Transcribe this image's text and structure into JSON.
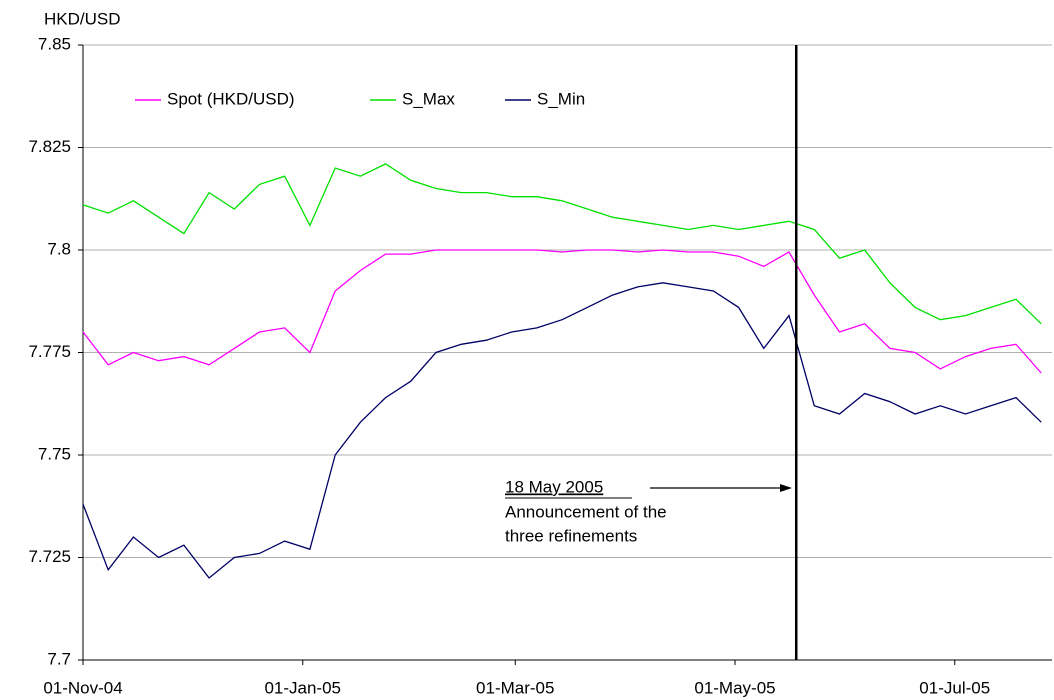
{
  "chart_data": {
    "type": "line",
    "y_label": "HKD/USD",
    "x": [
      "2004-11-01",
      "2004-11-08",
      "2004-11-15",
      "2004-11-22",
      "2004-11-29",
      "2004-12-06",
      "2004-12-13",
      "2004-12-20",
      "2004-12-27",
      "2005-01-03",
      "2005-01-10",
      "2005-01-17",
      "2005-01-24",
      "2005-01-31",
      "2005-02-07",
      "2005-02-14",
      "2005-02-21",
      "2005-02-28",
      "2005-03-07",
      "2005-03-14",
      "2005-03-21",
      "2005-03-28",
      "2005-04-04",
      "2005-04-11",
      "2005-04-18",
      "2005-04-25",
      "2005-05-02",
      "2005-05-09",
      "2005-05-16",
      "2005-05-23",
      "2005-05-30",
      "2005-06-06",
      "2005-06-13",
      "2005-06-20",
      "2005-06-27",
      "2005-07-04",
      "2005-07-11",
      "2005-07-18",
      "2005-07-25"
    ],
    "series": [
      {
        "name": "Spot (HKD/USD)",
        "color": "#ff00ff",
        "values": [
          7.78,
          7.772,
          7.775,
          7.773,
          7.774,
          7.772,
          7.776,
          7.78,
          7.781,
          7.775,
          7.79,
          7.795,
          7.799,
          7.799,
          7.8,
          7.8,
          7.8,
          7.8,
          7.8,
          7.7995,
          7.8,
          7.8,
          7.7995,
          7.8,
          7.7995,
          7.7995,
          7.7985,
          7.796,
          7.7995,
          7.789,
          7.78,
          7.782,
          7.776,
          7.775,
          7.771,
          7.774,
          7.776,
          7.777,
          7.77
        ]
      },
      {
        "name": "S_Max",
        "color": "#00e000",
        "values": [
          7.811,
          7.809,
          7.812,
          7.808,
          7.804,
          7.814,
          7.81,
          7.816,
          7.818,
          7.806,
          7.82,
          7.818,
          7.821,
          7.817,
          7.815,
          7.814,
          7.814,
          7.813,
          7.813,
          7.812,
          7.81,
          7.808,
          7.807,
          7.806,
          7.805,
          7.806,
          7.805,
          7.806,
          7.807,
          7.805,
          7.798,
          7.8,
          7.792,
          7.786,
          7.783,
          7.784,
          7.786,
          7.788,
          7.782
        ]
      },
      {
        "name": "S_Min",
        "color": "#000066",
        "values": [
          7.738,
          7.722,
          7.73,
          7.725,
          7.728,
          7.72,
          7.725,
          7.726,
          7.729,
          7.727,
          7.75,
          7.758,
          7.764,
          7.768,
          7.775,
          7.777,
          7.778,
          7.78,
          7.781,
          7.783,
          7.786,
          7.789,
          7.791,
          7.792,
          7.791,
          7.79,
          7.786,
          7.776,
          7.784,
          7.762,
          7.76,
          7.765,
          7.763,
          7.76,
          7.762,
          7.76,
          7.762,
          7.764,
          7.758
        ]
      }
    ],
    "xlim": [
      "2004-11-01",
      "2005-07-28"
    ],
    "xticks": [
      {
        "value": "2004-11-01",
        "label": "01-Nov-04"
      },
      {
        "value": "2005-01-01",
        "label": "01-Jan-05"
      },
      {
        "value": "2005-03-01",
        "label": "01-Mar-05"
      },
      {
        "value": "2005-05-01",
        "label": "01-May-05"
      },
      {
        "value": "2005-07-01",
        "label": "01-Jul-05"
      }
    ],
    "ylim": [
      7.7,
      7.85
    ],
    "yticks": [
      7.7,
      7.725,
      7.75,
      7.775,
      7.8,
      7.825,
      7.85
    ],
    "grid": true,
    "legend": "top-left",
    "vline": "2005-05-18",
    "annotation": {
      "title": "18 May 2005",
      "lines": [
        "Announcement of the",
        "three refinements"
      ]
    }
  }
}
